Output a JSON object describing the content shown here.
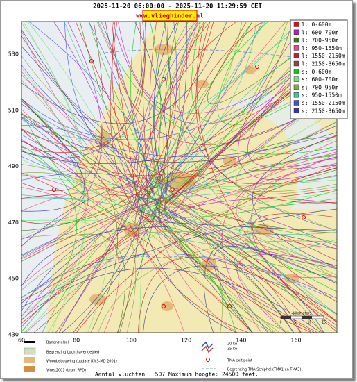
{
  "header": {
    "period": "2025-11-20 06:00:00 - 2025-11-20 11:29:59 CET",
    "site": "www.vlieghinder.nl"
  },
  "legend": {
    "items": [
      {
        "label": "l: 0-600m",
        "color": "#e01010"
      },
      {
        "label": "l: 600-700m",
        "color": "#b020c0"
      },
      {
        "label": "l: 700-950m",
        "color": "#3c7a10"
      },
      {
        "label": "l: 950-1550m",
        "color": "#e04c8c"
      },
      {
        "label": "l: 1550-2150m",
        "color": "#c02030"
      },
      {
        "label": "l: 2150-3650m",
        "color": "#98403c"
      },
      {
        "label": "s: 0-600m",
        "color": "#10c810"
      },
      {
        "label": "s: 600-700m",
        "color": "#70e870"
      },
      {
        "label": "s: 700-950m",
        "color": "#88a840"
      },
      {
        "label": "s: 950-1550m",
        "color": "#40c0a8"
      },
      {
        "label": "s: 1550-2150m",
        "color": "#4050e0"
      },
      {
        "label": "s: 2150-3650m",
        "color": "#383890"
      }
    ]
  },
  "axes": {
    "y": {
      "ticks": [
        530,
        510,
        490,
        470,
        450,
        430
      ]
    },
    "x": {
      "ticks": [
        60,
        80,
        100,
        120,
        140,
        160
      ]
    }
  },
  "scale": {
    "title": "kilometers",
    "ticks": [
      "0",
      "5",
      "10",
      "15"
    ]
  },
  "map_legend": {
    "runways": "Banenstelsel",
    "airport_boundary": "Begrenzing Luchthavengebied",
    "housing": "Woonbebouwing (update RWS-MD 2001)",
    "vinex": "Vinex2001 (bron: RPD)",
    "ke20": "20 Ke",
    "ke35": "35 Ke",
    "tma_exit": "TMA exit point",
    "tma_boundary": "Begrenzing TMA Schiphol  (TMA1 en TMA3)"
  },
  "footer": "Aantal vluchten : 507 Maximum hoogte: 24500 feet."
}
